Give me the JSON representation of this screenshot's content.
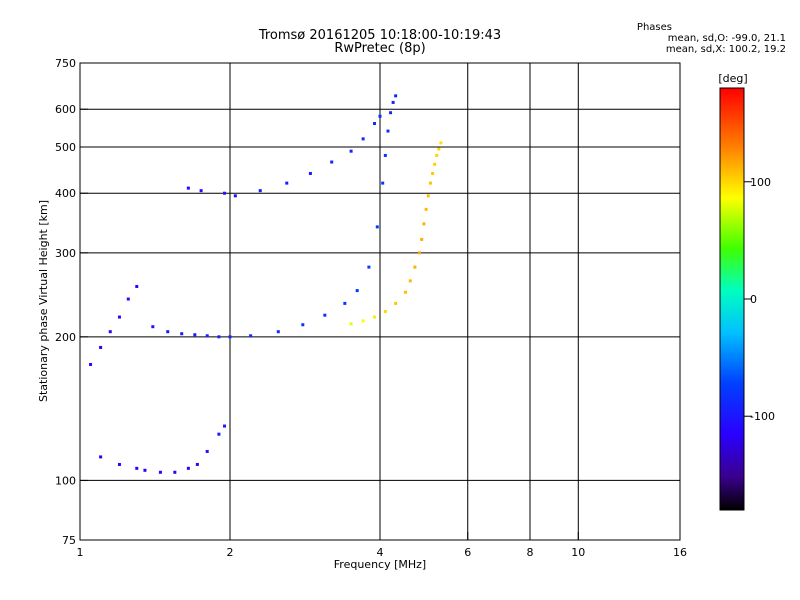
{
  "chart_data": {
    "type": "scatter",
    "title": "Tromsø 20161205 10:18:00-10:19:43",
    "subtitle": "RwPretec (8p)",
    "xlabel": "Frequency [MHz]",
    "ylabel": "Stationary phase Virtual Height [km]",
    "x_scale": "log",
    "y_scale": "log",
    "xlim": [
      1,
      16
    ],
    "ylim": [
      75,
      750
    ],
    "x_ticks": [
      1,
      2,
      4,
      6,
      8,
      10,
      16
    ],
    "x_tick_labels": [
      "1",
      "2",
      "4",
      "6",
      "8",
      "10",
      "16"
    ],
    "y_ticks": [
      75,
      100,
      200,
      300,
      400,
      500,
      600,
      750
    ],
    "y_tick_labels": [
      "75",
      "100",
      "200",
      "300",
      "400",
      "500",
      "600",
      "750"
    ],
    "x_gridlines": [
      2,
      4,
      6,
      8,
      10
    ],
    "y_gridlines": [
      100,
      200,
      300,
      400,
      500,
      600
    ],
    "grid": true,
    "colorbar": {
      "label": "[deg]",
      "range": [
        -180,
        180
      ],
      "ticks": [
        100,
        0,
        -100
      ],
      "tick_labels": [
        "100",
        "0",
        "-100"
      ]
    },
    "stats": {
      "header": "Phases",
      "line1": "mean, sd,O: -99.0, 21.1",
      "line2": "mean, sd,X: 100.2, 19.2"
    },
    "series": [
      {
        "values_note": "O-mode trace (phase ~ -100 deg)",
        "x": [
          1.05,
          1.1,
          1.15,
          1.2,
          1.25,
          1.3,
          1.4,
          1.5,
          1.6,
          1.7,
          1.8,
          1.9,
          2.0,
          2.2,
          2.5,
          2.8,
          3.1,
          3.4,
          3.6,
          3.8,
          3.95,
          4.05,
          4.1,
          4.15,
          4.2,
          4.25,
          4.3,
          1.65,
          1.75,
          1.95,
          2.05,
          2.3,
          2.6,
          2.9,
          3.2,
          3.5,
          3.7,
          3.9,
          4.0,
          1.1,
          1.2,
          1.3,
          1.35,
          1.45,
          1.55,
          1.65,
          1.72,
          1.8,
          1.9,
          1.95
        ],
        "y": [
          175,
          190,
          205,
          220,
          240,
          255,
          210,
          205,
          203,
          202,
          201,
          200,
          200,
          201,
          205,
          212,
          222,
          235,
          250,
          280,
          340,
          420,
          480,
          540,
          590,
          620,
          640,
          410,
          405,
          400,
          395,
          405,
          420,
          440,
          465,
          490,
          520,
          560,
          580,
          112,
          108,
          106,
          105,
          104,
          104,
          106,
          108,
          115,
          125,
          130
        ],
        "phase": [
          -110,
          -115,
          -112,
          -108,
          -105,
          -110,
          -104,
          -100,
          -98,
          -96,
          -95,
          -94,
          -90,
          -88,
          -86,
          -84,
          -85,
          -82,
          -80,
          -78,
          -80,
          -82,
          -84,
          -86,
          -88,
          -90,
          -92,
          -110,
          -108,
          -104,
          -102,
          -100,
          -98,
          -96,
          -94,
          -92,
          -90,
          -88,
          -86,
          -115,
          -112,
          -115,
          -118,
          -116,
          -118,
          -112,
          -110,
          -105,
          -100,
          -98
        ]
      },
      {
        "values_note": "X-mode trace (phase ~ +100 deg)",
        "x": [
          3.5,
          3.7,
          3.9,
          4.1,
          4.3,
          4.5,
          4.6,
          4.7,
          4.8,
          4.85,
          4.9,
          4.95,
          5.0,
          5.05,
          5.1,
          5.15,
          5.2,
          5.25,
          5.3
        ],
        "y": [
          213,
          216,
          220,
          226,
          235,
          248,
          262,
          280,
          300,
          320,
          345,
          370,
          395,
          420,
          440,
          460,
          480,
          495,
          510
        ],
        "phase": [
          80,
          86,
          92,
          98,
          104,
          108,
          110,
          112,
          115,
          114,
          112,
          110,
          108,
          106,
          104,
          102,
          100,
          98,
          96
        ]
      }
    ]
  }
}
